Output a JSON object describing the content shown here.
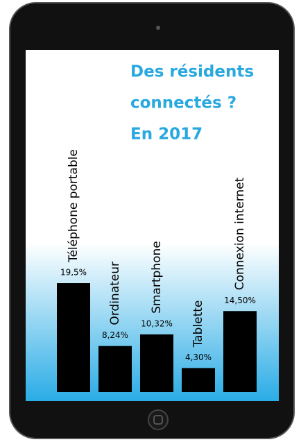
{
  "chart_data": {
    "type": "bar",
    "title": [
      "Des résidents",
      "connectés ?",
      "En  2017"
    ],
    "categories": [
      "Téléphone portable",
      "Ordinateur",
      "Smartphone",
      "Tablette",
      "Connexion internet"
    ],
    "values": [
      19.5,
      8.24,
      10.32,
      4.3,
      14.5
    ],
    "value_labels": [
      "19,5%",
      "8,24%",
      "10,32%",
      "4,30%",
      "14,50%"
    ],
    "color": "#000000",
    "title_color": "#29a8e0"
  }
}
